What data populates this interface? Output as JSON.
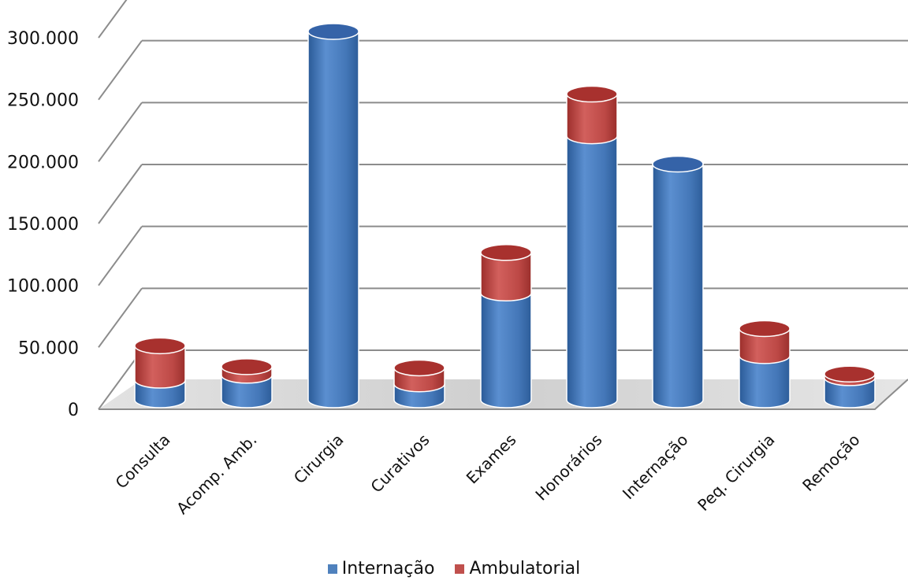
{
  "chart_data": {
    "type": "bar",
    "stacked": true,
    "style": "3d-cylinder",
    "categories": [
      "Consulta",
      "Acomp. Amb.",
      "Cirurgia",
      "Curativos",
      "Exames",
      "Honorários",
      "Internação",
      "Peq. Cirurgia",
      "Remoção"
    ],
    "series": [
      {
        "name": "Internação",
        "color": "#4f81bd",
        "values": [
          16000,
          20000,
          300000,
          13000,
          87000,
          215000,
          192000,
          36000,
          18000
        ]
      },
      {
        "name": "Ambulatorial",
        "color": "#c0504d",
        "values": [
          28000,
          7000,
          0,
          13000,
          33000,
          34000,
          0,
          22000,
          3000
        ]
      }
    ],
    "y_ticks": [
      "0",
      "50.000",
      "100.000",
      "150.000",
      "200.000",
      "250.000",
      "300.000"
    ],
    "ylim": [
      0,
      300000
    ],
    "grid": true,
    "legend_position": "bottom",
    "title": "",
    "xlabel": "",
    "ylabel": ""
  }
}
